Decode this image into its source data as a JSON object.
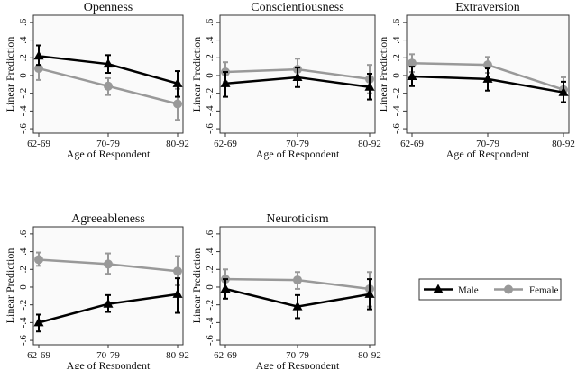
{
  "chart_data": {
    "type": "line",
    "x": [
      "62-69",
      "70-79",
      "80-92"
    ],
    "xlabel": "Age of Respondent",
    "ylabel": "Linear Prediction",
    "ylim": [
      -0.65,
      0.68
    ],
    "yticks": [
      -0.6,
      -0.4,
      -0.2,
      0,
      0.2,
      0.4,
      0.6
    ],
    "ytick_labels": [
      "-.6",
      "-.4",
      "-.2",
      "0",
      ".2",
      ".4",
      ".6"
    ],
    "legend": {
      "placement": "bottom-right",
      "entries": [
        "Male",
        "Female"
      ]
    },
    "colors": {
      "Male": "#000000",
      "Female": "#999999"
    },
    "panels": [
      {
        "title": "Openness",
        "series": [
          {
            "name": "Male",
            "values": [
              0.22,
              0.13,
              -0.09
            ],
            "ci_low": [
              0.12,
              0.03,
              -0.24
            ],
            "ci_high": [
              0.34,
              0.23,
              0.05
            ]
          },
          {
            "name": "Female",
            "values": [
              0.08,
              -0.12,
              -0.32
            ],
            "ci_low": [
              -0.05,
              -0.22,
              -0.5
            ],
            "ci_high": [
              0.2,
              -0.03,
              -0.15
            ]
          }
        ]
      },
      {
        "title": "Conscientiousness",
        "series": [
          {
            "name": "Male",
            "values": [
              -0.09,
              -0.02,
              -0.13
            ],
            "ci_low": [
              -0.24,
              -0.13,
              -0.27
            ],
            "ci_high": [
              0.04,
              0.09,
              0.02
            ]
          },
          {
            "name": "Female",
            "values": [
              0.04,
              0.07,
              -0.04
            ],
            "ci_low": [
              -0.07,
              -0.04,
              -0.2
            ],
            "ci_high": [
              0.15,
              0.19,
              0.12
            ]
          }
        ]
      },
      {
        "title": "Extraversion",
        "series": [
          {
            "name": "Male",
            "values": [
              -0.01,
              -0.04,
              -0.19
            ],
            "ci_low": [
              -0.12,
              -0.17,
              -0.3
            ],
            "ci_high": [
              0.1,
              0.08,
              -0.07
            ]
          },
          {
            "name": "Female",
            "values": [
              0.14,
              0.12,
              -0.16
            ],
            "ci_low": [
              0.04,
              0.03,
              -0.3
            ],
            "ci_high": [
              0.24,
              0.21,
              -0.02
            ]
          }
        ]
      },
      {
        "title": "Agreeableness",
        "series": [
          {
            "name": "Male",
            "values": [
              -0.4,
              -0.19,
              -0.08
            ],
            "ci_low": [
              -0.5,
              -0.28,
              -0.29
            ],
            "ci_high": [
              -0.31,
              -0.09,
              0.1
            ]
          },
          {
            "name": "Female",
            "values": [
              0.31,
              0.26,
              0.18
            ],
            "ci_low": [
              0.24,
              0.15,
              0.02
            ],
            "ci_high": [
              0.39,
              0.38,
              0.35
            ]
          }
        ]
      },
      {
        "title": "Neuroticism",
        "series": [
          {
            "name": "Male",
            "values": [
              -0.02,
              -0.22,
              -0.08
            ],
            "ci_low": [
              -0.13,
              -0.35,
              -0.25
            ],
            "ci_high": [
              0.09,
              -0.09,
              0.09
            ]
          },
          {
            "name": "Female",
            "values": [
              0.09,
              0.08,
              -0.02
            ],
            "ci_low": [
              -0.02,
              -0.02,
              -0.22
            ],
            "ci_high": [
              0.2,
              0.17,
              0.17
            ]
          }
        ]
      }
    ]
  }
}
